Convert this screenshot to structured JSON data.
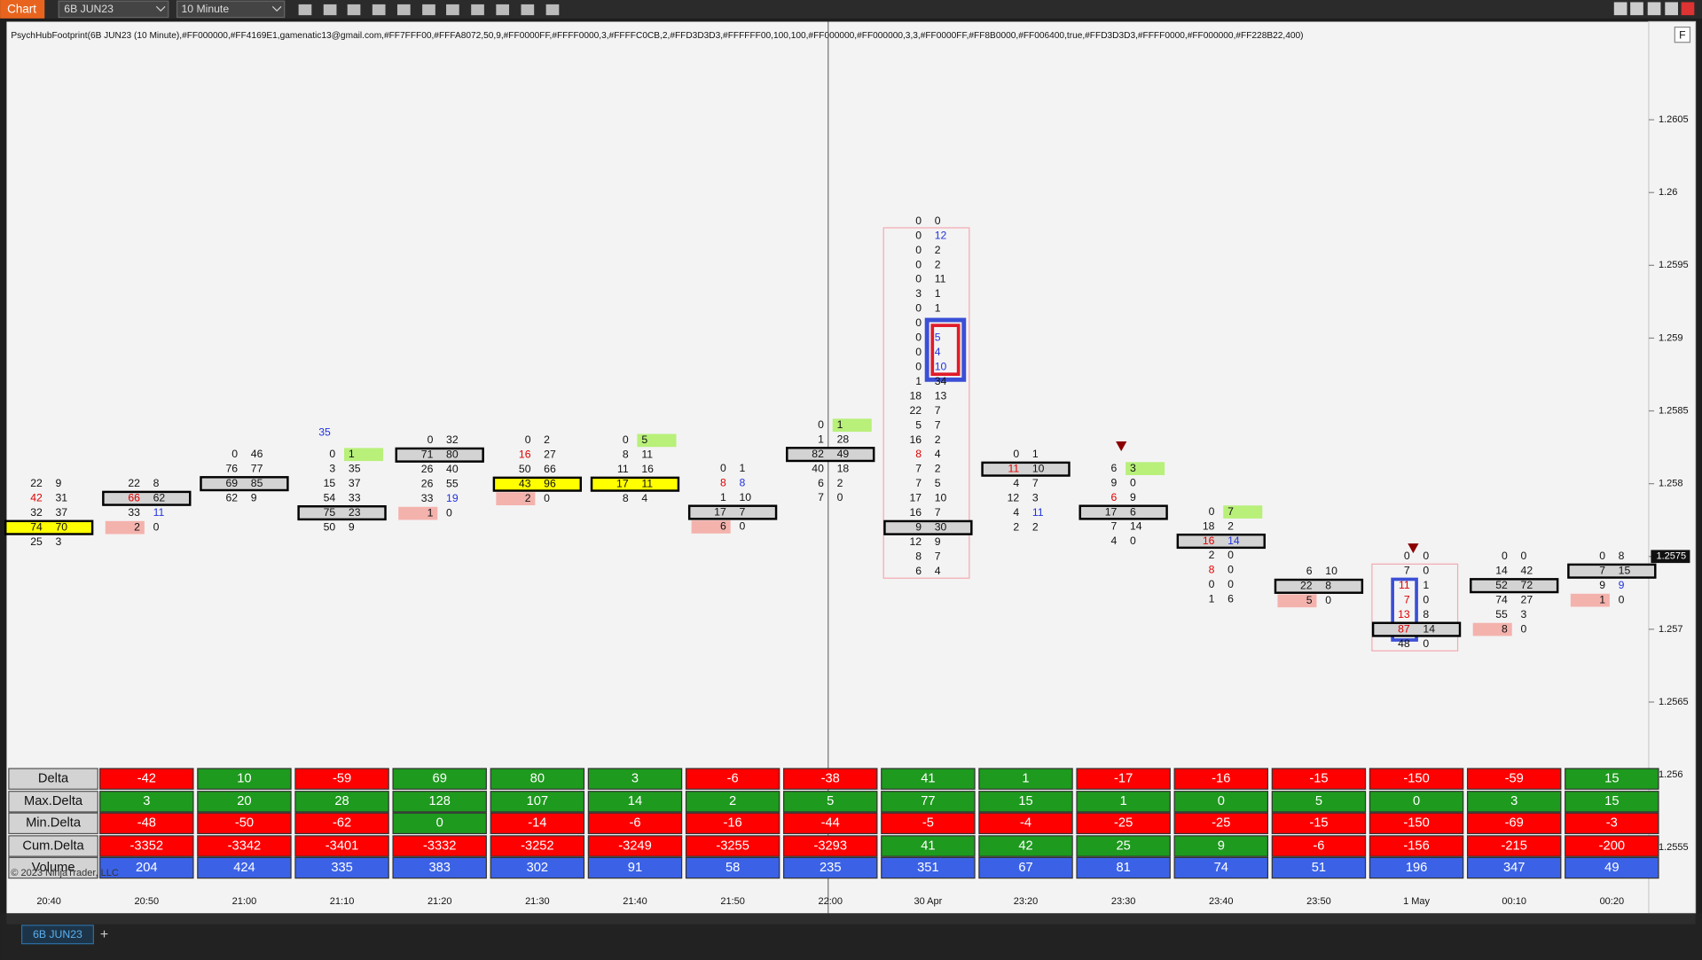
{
  "toolbar": {
    "button": "Chart",
    "instrument": "6B JUN23",
    "interval": "10 Minute"
  },
  "indicator_label": "PsychHubFootprint(6B JUN23 (10 Minute),#FF000000,#FF4169E1,gamenatic13@gmail.com,#FF7FFF00,#FFFA8072,50,9,#FF0000FF,#FFFF0000,3,#FFFFC0CB,2,#FFD3D3D3,#FFFFFF00,100,100,#FF000000,#FF000000,3,3,#FF0000FF,#FF8B0000,#FF006400,true,#FFD3D3D3,#FFFF0000,#FF000000,#FF228B22,400)",
  "panel_button": "F",
  "price_axis": {
    "ticks": [
      1.2605,
      1.26,
      1.2595,
      1.259,
      1.2585,
      1.258,
      1.2575,
      1.257,
      1.2565,
      1.256,
      1.2555
    ],
    "last_price": 1.2575
  },
  "time_axis": {
    "labels": [
      "20:40",
      "20:50",
      "21:00",
      "21:10",
      "21:20",
      "21:30",
      "21:40",
      "21:50",
      "22:00",
      "30 Apr",
      "23:20",
      "23:30",
      "23:40",
      "23:50",
      "1 May",
      "00:10",
      "00:20"
    ]
  },
  "bars": [
    {
      "rows": [
        [
          22,
          9
        ],
        [
          42,
          31
        ],
        [
          32,
          37
        ],
        [
          74,
          70
        ],
        [
          25,
          3
        ]
      ]
    },
    {
      "rows": [
        [
          22,
          8
        ],
        [
          66,
          62
        ],
        [
          33,
          11
        ],
        [
          2,
          0
        ]
      ]
    },
    {
      "rows": [
        [
          0,
          46
        ],
        [
          76,
          77
        ],
        [
          69,
          85
        ],
        [
          62,
          9
        ]
      ]
    },
    {
      "top_label": 35,
      "rows": [
        [
          0,
          1
        ],
        [
          3,
          35
        ],
        [
          15,
          37
        ],
        [
          54,
          33
        ],
        [
          75,
          23
        ],
        [
          50,
          9
        ]
      ]
    },
    {
      "rows": [
        [
          0,
          32
        ],
        [
          71,
          80
        ],
        [
          26,
          40
        ],
        [
          26,
          55
        ],
        [
          33,
          19
        ],
        [
          1,
          0
        ]
      ]
    },
    {
      "rows": [
        [
          0,
          2
        ],
        [
          16,
          27
        ],
        [
          50,
          66
        ],
        [
          43,
          96
        ],
        [
          2,
          0
        ]
      ]
    },
    {
      "rows": [
        [
          0,
          5
        ],
        [
          8,
          11
        ],
        [
          11,
          16
        ],
        [
          17,
          11
        ],
        [
          8,
          4
        ]
      ]
    },
    {
      "rows": [
        [
          0,
          1
        ],
        [
          8,
          8
        ],
        [
          1,
          10
        ],
        [
          17,
          7
        ],
        [
          6,
          0
        ]
      ]
    },
    {
      "rows": [
        [
          0,
          1
        ],
        [
          1,
          28
        ],
        [
          82,
          49
        ],
        [
          40,
          18
        ],
        [
          6,
          2
        ],
        [
          7,
          0
        ]
      ]
    },
    {
      "rows": [
        [
          0,
          0
        ],
        [
          0,
          12
        ],
        [
          0,
          2
        ],
        [
          0,
          2
        ],
        [
          0,
          11
        ],
        [
          3,
          1
        ],
        [
          0,
          1
        ],
        [
          0,
          null
        ],
        [
          0,
          5
        ],
        [
          0,
          4
        ],
        [
          0,
          10
        ],
        [
          1,
          34
        ],
        [
          18,
          13
        ],
        [
          22,
          7
        ],
        [
          5,
          7
        ],
        [
          16,
          2
        ],
        [
          8,
          4
        ],
        [
          7,
          2
        ],
        [
          7,
          5
        ],
        [
          17,
          10
        ],
        [
          16,
          7
        ],
        [
          9,
          30
        ],
        [
          12,
          9
        ],
        [
          8,
          7
        ],
        [
          6,
          4
        ]
      ]
    },
    {
      "rows": [
        [
          0,
          1
        ],
        [
          11,
          10
        ],
        [
          4,
          7
        ],
        [
          12,
          3
        ],
        [
          4,
          11
        ],
        [
          2,
          2
        ]
      ]
    },
    {
      "rows": [
        [
          6,
          3
        ],
        [
          9,
          0
        ],
        [
          6,
          9
        ],
        [
          17,
          6
        ],
        [
          7,
          14
        ],
        [
          4,
          0
        ]
      ]
    },
    {
      "rows": [
        [
          0,
          7
        ],
        [
          18,
          2
        ],
        [
          16,
          14
        ],
        [
          2,
          0
        ],
        [
          8,
          0
        ],
        [
          0,
          0
        ],
        [
          1,
          6
        ]
      ]
    },
    {
      "rows": [
        [
          6,
          10
        ],
        [
          22,
          8
        ],
        [
          5,
          0
        ]
      ]
    },
    {
      "rows": [
        [
          0,
          0
        ],
        [
          7,
          0
        ],
        [
          11,
          1
        ],
        [
          7,
          0
        ],
        [
          13,
          8
        ],
        [
          87,
          14
        ],
        [
          48,
          0
        ]
      ]
    },
    {
      "rows": [
        [
          0,
          0
        ],
        [
          14,
          42
        ],
        [
          52,
          72
        ],
        [
          74,
          27
        ],
        [
          55,
          3
        ],
        [
          8,
          0
        ]
      ]
    },
    {
      "rows": [
        [
          0,
          8
        ],
        [
          7,
          15
        ],
        [
          9,
          9
        ],
        [
          1,
          0
        ]
      ]
    }
  ],
  "stats": {
    "row_labels": [
      "Delta",
      "Max.Delta",
      "Min.Delta",
      "Cum.Delta",
      "Volume"
    ],
    "rows": [
      [
        -42,
        10,
        -59,
        69,
        80,
        3,
        -6,
        -38,
        41,
        1,
        -17,
        -16,
        -15,
        -150,
        -59,
        15
      ],
      [
        3,
        20,
        28,
        128,
        107,
        14,
        2,
        5,
        77,
        15,
        1,
        0,
        5,
        0,
        3,
        15
      ],
      [
        -48,
        -50,
        -62,
        0,
        -14,
        -6,
        -16,
        -44,
        -5,
        -4,
        -25,
        -25,
        -15,
        -150,
        -69,
        -3
      ],
      [
        -3352,
        -3342,
        -3401,
        -3332,
        -3252,
        -3249,
        -3255,
        -3293,
        41,
        42,
        25,
        9,
        -6,
        -156,
        -215,
        -200
      ],
      [
        204,
        424,
        335,
        383,
        302,
        91,
        58,
        235,
        351,
        67,
        81,
        74,
        51,
        196,
        347,
        49
      ]
    ]
  },
  "copyright": "© 2023 NinjaTrader, LLC",
  "tab": "6B JUN23",
  "add_tab": "+"
}
